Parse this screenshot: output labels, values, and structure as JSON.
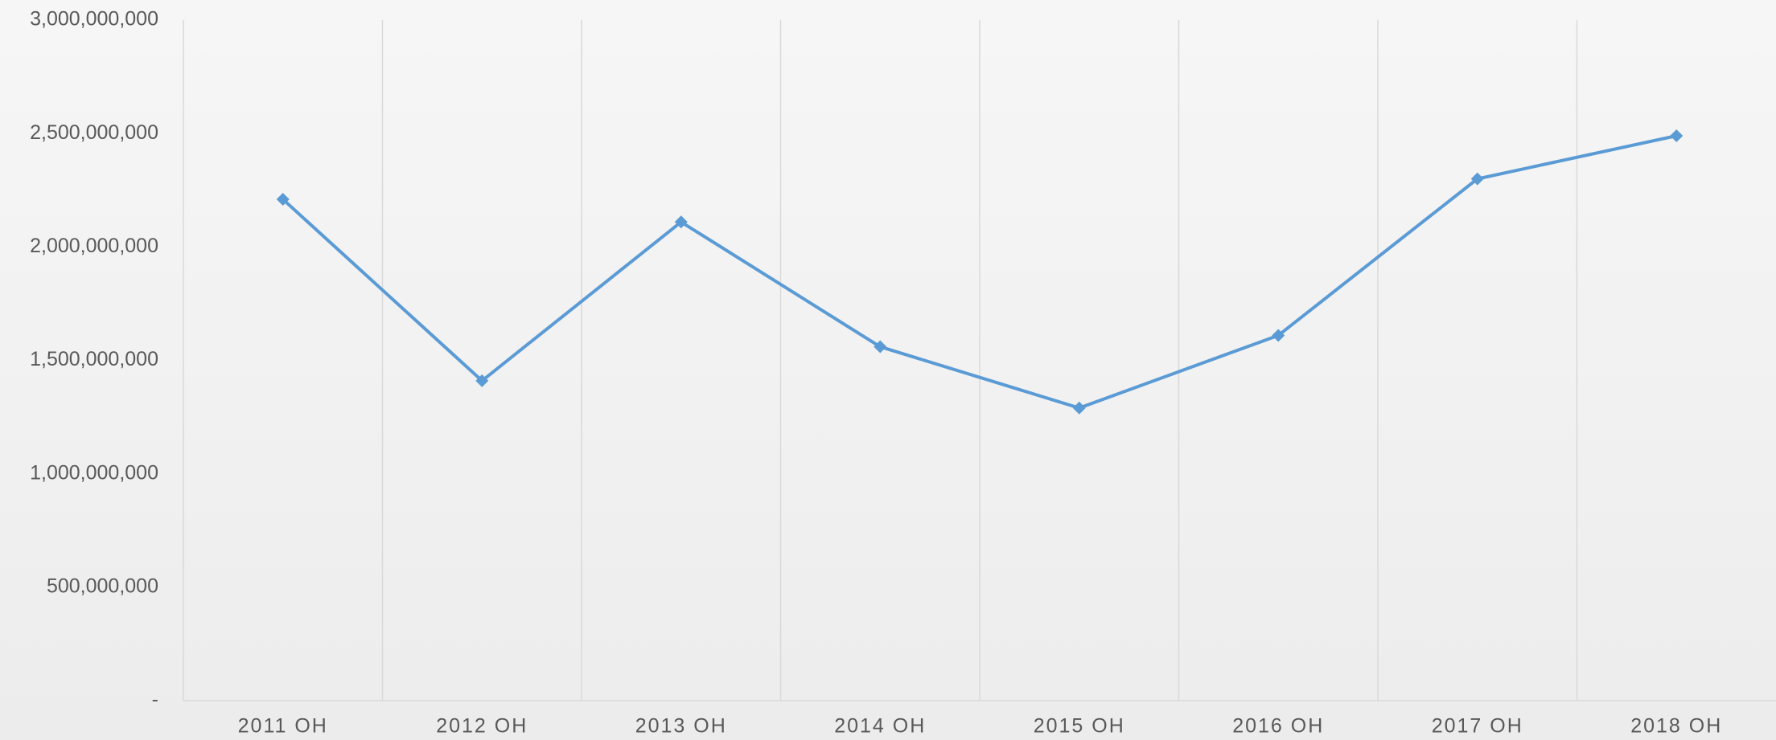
{
  "chart_data": {
    "type": "line",
    "categories": [
      "2011 OH",
      "2012 OH",
      "2013 OH",
      "2014 OH",
      "2015 OH",
      "2016 OH",
      "2017 OH",
      "2018 OH"
    ],
    "values": [
      2210000000,
      1410000000,
      2110000000,
      1560000000,
      1290000000,
      1610000000,
      2300000000,
      2490000000
    ],
    "color": "#5b9bd5",
    "ylim": [
      0,
      3000000000
    ],
    "yticks": [
      {
        "value": 0,
        "label": "-"
      },
      {
        "value": 500000000,
        "label": "500,000,000"
      },
      {
        "value": 1000000000,
        "label": "1,000,000,000"
      },
      {
        "value": 1500000000,
        "label": "1,500,000,000"
      },
      {
        "value": 2000000000,
        "label": "2,000,000,000"
      },
      {
        "value": 2500000000,
        "label": "2,500,000,000"
      },
      {
        "value": 3000000000,
        "label": "3,000,000,000"
      }
    ]
  }
}
